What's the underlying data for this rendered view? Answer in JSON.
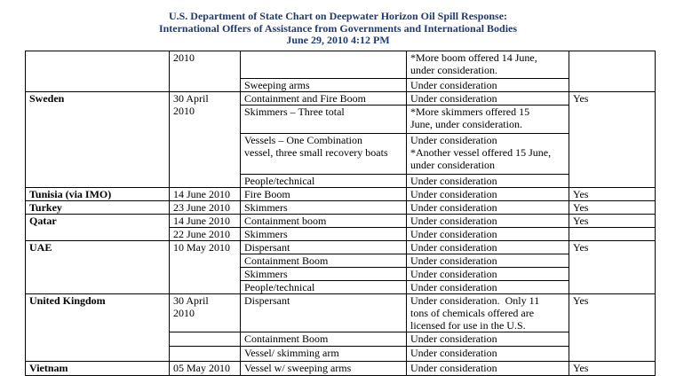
{
  "header": {
    "title_line1": "U.S. Department of State Chart on Deepwater Horizon Oil Spill Response:",
    "title_line2": "International Offers of Assistance from Governments and International Bodies",
    "title_line3": "June 29, 2010 4:12 PM",
    "title_color": "#1f3a70"
  },
  "table": {
    "groups": [
      {
        "country": "",
        "date": "2010",
        "accepted": "",
        "offers": [
          {
            "item": "",
            "status": "*More boom offered 14 June,\nunder consideration."
          },
          {
            "item": "Sweeping arms",
            "status": "Under consideration"
          }
        ]
      },
      {
        "country": "Sweden",
        "date": "30 April\n2010",
        "accepted": "Yes",
        "offers": [
          {
            "item": "Containment and Fire Boom",
            "status": "Under consideration"
          },
          {
            "item": "Skimmers – Three total",
            "status": "*More skimmers offered 15\nJune, under consideration."
          },
          {
            "item": "Vessels – One Combination\nvessel, three small recovery boats",
            "status": "Under consideration\n*Another vessel offered 15 June,\nunder consideration"
          },
          {
            "item": "People/technical",
            "status": "Under consideration"
          }
        ]
      },
      {
        "country": "Tunisia (via IMO)",
        "date": "14 June 2010",
        "accepted": "Yes",
        "offers": [
          {
            "item": "Fire Boom",
            "status": "Under consideration"
          }
        ]
      },
      {
        "country": "Turkey",
        "date": "23 June 2010",
        "accepted": "Yes",
        "offers": [
          {
            "item": "Skimmers",
            "status": "Under consideration"
          }
        ]
      },
      {
        "country": "Qatar",
        "entries": [
          {
            "date": "14 June 2010",
            "item": "Containment boom",
            "status": "Under consideration",
            "accepted": "Yes"
          },
          {
            "date": "22 June 2010",
            "item": "Skimmers",
            "status": "Under consideration",
            "accepted": ""
          }
        ]
      },
      {
        "country": "UAE",
        "date": "10 May 2010",
        "accepted": "Yes",
        "offers": [
          {
            "item": "Dispersant",
            "status": "Under consideration"
          },
          {
            "item": "Containment Boom",
            "status": "Under consideration"
          },
          {
            "item": "Skimmers",
            "status": "Under consideration"
          },
          {
            "item": "People/technical",
            "status": "Under consideration"
          }
        ]
      },
      {
        "country": "United Kingdom",
        "date": "30 April\n2010",
        "accepted": "Yes",
        "offers": [
          {
            "item": "Dispersant",
            "status": "Under consideration.  Only 11\ntons of chemicals offered are\nlicensed for use in the U.S."
          },
          {
            "item": "Containment Boom",
            "status": "Under consideration"
          },
          {
            "item": "Vessel/ skimming arm",
            "status": "Under consideration"
          }
        ]
      },
      {
        "country": "Vietnam",
        "date": "05 May 2010",
        "accepted": "Yes",
        "offers": [
          {
            "item": "Vessel w/ sweeping arms",
            "status": "Under consideration"
          }
        ]
      }
    ]
  }
}
